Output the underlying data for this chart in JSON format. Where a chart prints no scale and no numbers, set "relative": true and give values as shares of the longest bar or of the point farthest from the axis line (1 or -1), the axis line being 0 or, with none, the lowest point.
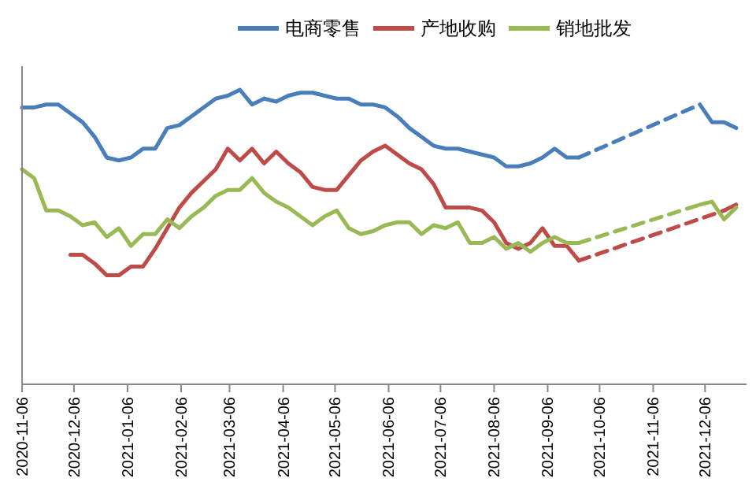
{
  "chart_data": {
    "type": "line",
    "relative": true,
    "legend": "top",
    "line_style": "solid",
    "marker": "none",
    "x": [
      "2020-11-06",
      "2020-11-13",
      "2020-11-20",
      "2020-11-27",
      "2020-12-04",
      "2020-12-11",
      "2020-12-18",
      "2020-12-25",
      "2021-01-01",
      "2021-01-08",
      "2021-01-15",
      "2021-01-22",
      "2021-01-29",
      "2021-02-05",
      "2021-02-12",
      "2021-02-19",
      "2021-02-26",
      "2021-03-05",
      "2021-03-12",
      "2021-03-19",
      "2021-03-26",
      "2021-04-02",
      "2021-04-09",
      "2021-04-16",
      "2021-04-23",
      "2021-04-30",
      "2021-05-07",
      "2021-05-14",
      "2021-05-21",
      "2021-05-28",
      "2021-06-04",
      "2021-06-11",
      "2021-06-18",
      "2021-06-25",
      "2021-07-02",
      "2021-07-09",
      "2021-07-16",
      "2021-07-23",
      "2021-07-30",
      "2021-08-06",
      "2021-08-13",
      "2021-08-20",
      "2021-08-27",
      "2021-09-03",
      "2021-09-10",
      "2021-09-17",
      "2021-09-24"
    ],
    "xlim": [
      "2020-11-06",
      "2021-12-30"
    ],
    "xticks": [
      "2020-11-06",
      "2020-12-06",
      "2021-01-06",
      "2021-02-06",
      "2021-03-06",
      "2021-04-06",
      "2021-05-06",
      "2021-06-06",
      "2021-07-06",
      "2021-08-06",
      "2021-09-06",
      "2021-10-06",
      "2021-11-06",
      "2021-12-06"
    ],
    "series": [
      {
        "name": "电商零售",
        "color": "#4a7ebb",
        "values": [
          0.94,
          0.94,
          0.95,
          0.95,
          0.92,
          0.89,
          0.84,
          0.77,
          0.76,
          0.77,
          0.8,
          0.8,
          0.87,
          0.88,
          0.91,
          0.94,
          0.97,
          0.98,
          1.0,
          0.95,
          0.97,
          0.96,
          0.98,
          0.99,
          0.99,
          0.98,
          0.97,
          0.97,
          0.95,
          0.95,
          0.94,
          0.91,
          0.87,
          0.84,
          0.81,
          0.8,
          0.8,
          0.79,
          0.78,
          0.77,
          0.74,
          0.74,
          0.75,
          0.77,
          0.8,
          0.77,
          0.77
        ]
      },
      {
        "name": "产地收购",
        "color": "#be4b48",
        "values": [
          null,
          null,
          null,
          null,
          0.44,
          0.44,
          0.41,
          0.37,
          0.37,
          0.4,
          0.4,
          0.46,
          0.53,
          0.6,
          0.65,
          0.69,
          0.73,
          0.8,
          0.76,
          0.8,
          0.75,
          0.79,
          0.75,
          0.72,
          0.67,
          0.66,
          0.66,
          0.71,
          0.76,
          0.79,
          0.81,
          0.78,
          0.75,
          0.73,
          0.68,
          0.6,
          0.6,
          0.6,
          0.59,
          0.55,
          0.48,
          0.46,
          0.48,
          0.53,
          0.47,
          0.47,
          0.42
        ]
      },
      {
        "name": "销地批发",
        "color": "#98b954",
        "values": [
          0.73,
          0.7,
          0.59,
          0.59,
          0.57,
          0.54,
          0.55,
          0.5,
          0.53,
          0.47,
          0.51,
          0.51,
          0.56,
          0.53,
          0.57,
          0.6,
          0.64,
          0.66,
          0.66,
          0.7,
          0.65,
          0.62,
          0.6,
          0.57,
          0.54,
          0.57,
          0.59,
          0.53,
          0.51,
          0.52,
          0.54,
          0.55,
          0.55,
          0.51,
          0.54,
          0.53,
          0.55,
          0.48,
          0.48,
          0.5,
          0.46,
          0.48,
          0.45,
          0.48,
          0.5,
          0.48,
          0.48
        ]
      },
      {
        "color": "#4a7ebb",
        "line_style": "dashed",
        "x": [
          "2021-09-24",
          "2021-12-03"
        ],
        "values": [
          0.77,
          0.95
        ]
      },
      {
        "color": "#be4b48",
        "line_style": "dashed",
        "x": [
          "2021-09-24",
          "2021-12-17"
        ],
        "values": [
          0.42,
          0.59
        ]
      },
      {
        "color": "#98b954",
        "line_style": "dashed",
        "x": [
          "2021-09-24",
          "2021-12-03"
        ],
        "values": [
          0.48,
          0.61
        ]
      },
      {
        "color": "#4a7ebb",
        "x": [
          "2021-12-03",
          "2021-12-10",
          "2021-12-17",
          "2021-12-24"
        ],
        "values": [
          0.95,
          0.89,
          0.89,
          0.87
        ]
      },
      {
        "color": "#be4b48",
        "x": [
          "2021-12-17",
          "2021-12-24"
        ],
        "values": [
          0.59,
          0.61
        ]
      },
      {
        "color": "#98b954",
        "x": [
          "2021-12-03",
          "2021-12-10",
          "2021-12-17",
          "2021-12-24"
        ],
        "values": [
          0.61,
          0.62,
          0.56,
          0.6
        ]
      }
    ]
  }
}
